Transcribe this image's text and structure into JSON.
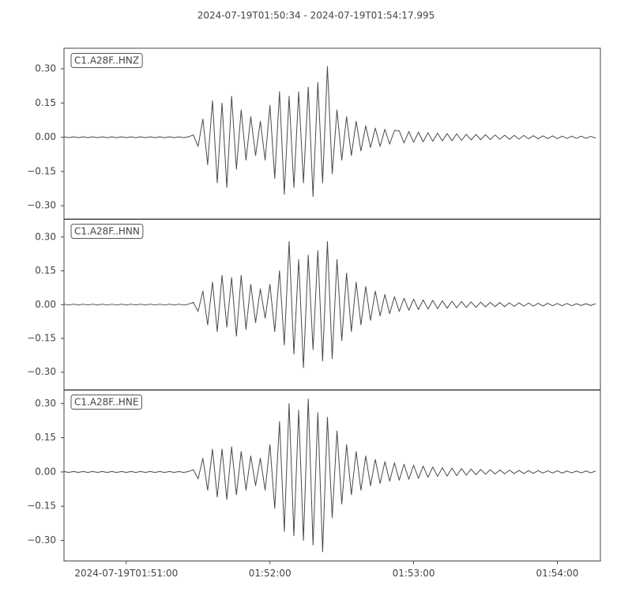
{
  "chart_data": [
    {
      "type": "line",
      "title": "2024-07-19T01:50:34  -  2024-07-19T01:54:17.995",
      "x": [
        0,
        2,
        4,
        6,
        8,
        10,
        12,
        14,
        16,
        18,
        20,
        22,
        24,
        26,
        28,
        30,
        32,
        34,
        36,
        38,
        40,
        42,
        44,
        46,
        48,
        50,
        52,
        54,
        56,
        58,
        60,
        62,
        64,
        66,
        68,
        70,
        72,
        74,
        76,
        78,
        80,
        82,
        84,
        86,
        88,
        90,
        92,
        94,
        96,
        98,
        100,
        102,
        104,
        106,
        108,
        110,
        112,
        114,
        116,
        118,
        120,
        122,
        124,
        126,
        128,
        130,
        132,
        134,
        136,
        138,
        140,
        142,
        144,
        146,
        148,
        150,
        152,
        154,
        156,
        158,
        160,
        162,
        164,
        166,
        168,
        170,
        172,
        174,
        176,
        178,
        180,
        182,
        184,
        186,
        188,
        190,
        192,
        194,
        196,
        198,
        200,
        202,
        204,
        206,
        208,
        210,
        212,
        214,
        216,
        218,
        220,
        222
      ],
      "xlim": [
        0,
        223.995
      ],
      "ylim": [
        -0.36,
        0.39
      ],
      "yticks": [
        {
          "value": 0.3,
          "label": "0.30"
        },
        {
          "value": 0.15,
          "label": "0.15"
        },
        {
          "value": 0,
          "label": "0.00"
        },
        {
          "value": -0.15,
          "label": "−0.15"
        },
        {
          "value": -0.3,
          "label": "−0.30"
        }
      ],
      "series": [
        {
          "name": "C1.A28F..HNZ",
          "color": "#4a4a4a",
          "values": [
            0.002,
            -0.002,
            0.002,
            -0.002,
            0.002,
            -0.002,
            0.002,
            -0.002,
            0.002,
            -0.002,
            0.002,
            -0.002,
            0.002,
            -0.002,
            0.002,
            -0.002,
            0.002,
            -0.002,
            0.002,
            -0.002,
            0.002,
            -0.002,
            0.002,
            -0.002,
            0.002,
            -0.002,
            0.002,
            0.01,
            -0.04,
            0.08,
            -0.12,
            0.16,
            -0.2,
            0.15,
            -0.22,
            0.18,
            -0.14,
            0.12,
            -0.1,
            0.09,
            -0.08,
            0.07,
            -0.1,
            0.14,
            -0.18,
            0.2,
            -0.25,
            0.18,
            -0.22,
            0.2,
            -0.2,
            0.22,
            -0.26,
            0.24,
            -0.2,
            0.31,
            -0.16,
            0.12,
            -0.1,
            0.09,
            -0.08,
            0.07,
            -0.06,
            0.05,
            -0.045,
            0.04,
            -0.04,
            0.035,
            -0.03,
            0.03,
            0.028,
            -0.025,
            0.025,
            -0.022,
            0.022,
            -0.02,
            0.02,
            -0.018,
            0.018,
            -0.016,
            0.016,
            -0.015,
            0.015,
            -0.014,
            0.013,
            -0.012,
            0.012,
            -0.011,
            0.011,
            -0.01,
            0.01,
            -0.009,
            0.009,
            -0.009,
            0.008,
            -0.008,
            0.008,
            -0.007,
            0.007,
            -0.007,
            0.006,
            -0.006,
            0.006,
            -0.006,
            0.005,
            -0.005,
            0.005,
            -0.005,
            0.005,
            -0.005,
            0.004,
            -0.004
          ]
        }
      ]
    },
    {
      "type": "line",
      "x": [
        0,
        2,
        4,
        6,
        8,
        10,
        12,
        14,
        16,
        18,
        20,
        22,
        24,
        26,
        28,
        30,
        32,
        34,
        36,
        38,
        40,
        42,
        44,
        46,
        48,
        50,
        52,
        54,
        56,
        58,
        60,
        62,
        64,
        66,
        68,
        70,
        72,
        74,
        76,
        78,
        80,
        82,
        84,
        86,
        88,
        90,
        92,
        94,
        96,
        98,
        100,
        102,
        104,
        106,
        108,
        110,
        112,
        114,
        116,
        118,
        120,
        122,
        124,
        126,
        128,
        130,
        132,
        134,
        136,
        138,
        140,
        142,
        144,
        146,
        148,
        150,
        152,
        154,
        156,
        158,
        160,
        162,
        164,
        166,
        168,
        170,
        172,
        174,
        176,
        178,
        180,
        182,
        184,
        186,
        188,
        190,
        192,
        194,
        196,
        198,
        200,
        202,
        204,
        206,
        208,
        210,
        212,
        214,
        216,
        218,
        220,
        222
      ],
      "xlim": [
        0,
        223.995
      ],
      "ylim": [
        -0.38,
        0.38
      ],
      "yticks": [
        {
          "value": 0.3,
          "label": "0.30"
        },
        {
          "value": 0.15,
          "label": "0.15"
        },
        {
          "value": 0,
          "label": "0.00"
        },
        {
          "value": -0.15,
          "label": "−0.15"
        },
        {
          "value": -0.3,
          "label": "−0.30"
        }
      ],
      "series": [
        {
          "name": "C1.A28F..HNN",
          "color": "#4a4a4a",
          "values": [
            0.002,
            -0.002,
            0.002,
            -0.002,
            0.002,
            -0.002,
            0.002,
            -0.002,
            0.002,
            -0.002,
            0.002,
            -0.002,
            0.002,
            -0.002,
            0.002,
            -0.002,
            0.002,
            -0.002,
            0.002,
            -0.002,
            0.002,
            -0.002,
            0.002,
            -0.002,
            0.002,
            -0.002,
            0.002,
            0.01,
            -0.03,
            0.06,
            -0.09,
            0.1,
            -0.12,
            0.13,
            -0.1,
            0.12,
            -0.14,
            0.13,
            -0.11,
            0.09,
            -0.08,
            0.07,
            -0.06,
            0.09,
            -0.12,
            0.15,
            -0.18,
            0.28,
            -0.22,
            0.2,
            -0.28,
            0.22,
            -0.2,
            0.24,
            -0.25,
            0.28,
            -0.24,
            0.2,
            -0.16,
            0.14,
            -0.12,
            0.1,
            -0.09,
            0.08,
            -0.07,
            0.06,
            -0.05,
            0.045,
            -0.04,
            0.035,
            -0.03,
            0.028,
            -0.025,
            0.024,
            -0.022,
            0.021,
            -0.02,
            0.019,
            -0.018,
            0.017,
            -0.016,
            0.015,
            -0.014,
            0.014,
            -0.013,
            0.012,
            -0.012,
            0.011,
            -0.01,
            0.01,
            -0.009,
            0.009,
            -0.009,
            0.008,
            -0.008,
            0.008,
            -0.007,
            0.007,
            -0.007,
            0.006,
            -0.006,
            0.006,
            -0.005,
            0.005,
            -0.005,
            0.005,
            -0.005,
            0.004,
            -0.004,
            0.004,
            -0.004,
            0.004
          ]
        }
      ]
    },
    {
      "type": "line",
      "x": [
        0,
        2,
        4,
        6,
        8,
        10,
        12,
        14,
        16,
        18,
        20,
        22,
        24,
        26,
        28,
        30,
        32,
        34,
        36,
        38,
        40,
        42,
        44,
        46,
        48,
        50,
        52,
        54,
        56,
        58,
        60,
        62,
        64,
        66,
        68,
        70,
        72,
        74,
        76,
        78,
        80,
        82,
        84,
        86,
        88,
        90,
        92,
        94,
        96,
        98,
        100,
        102,
        104,
        106,
        108,
        110,
        112,
        114,
        116,
        118,
        120,
        122,
        124,
        126,
        128,
        130,
        132,
        134,
        136,
        138,
        140,
        142,
        144,
        146,
        148,
        150,
        152,
        154,
        156,
        158,
        160,
        162,
        164,
        166,
        168,
        170,
        172,
        174,
        176,
        178,
        180,
        182,
        184,
        186,
        188,
        190,
        192,
        194,
        196,
        198,
        200,
        202,
        204,
        206,
        208,
        210,
        212,
        214,
        216,
        218,
        220,
        222
      ],
      "xlim": [
        0,
        223.995
      ],
      "xticks": [
        {
          "value": 26,
          "label": "2024-07-19T01:51:00"
        },
        {
          "value": 86,
          "label": "01:52:00"
        },
        {
          "value": 146,
          "label": "01:53:00"
        },
        {
          "value": 206,
          "label": "01:54:00"
        }
      ],
      "ylim": [
        -0.39,
        0.36
      ],
      "yticks": [
        {
          "value": 0.3,
          "label": "0.30"
        },
        {
          "value": 0.15,
          "label": "0.15"
        },
        {
          "value": 0,
          "label": "0.00"
        },
        {
          "value": -0.15,
          "label": "−0.15"
        },
        {
          "value": -0.3,
          "label": "−0.30"
        }
      ],
      "series": [
        {
          "name": "C1.A28F..HNE",
          "color": "#4a4a4a",
          "values": [
            0.002,
            -0.002,
            0.002,
            -0.002,
            0.002,
            -0.002,
            0.002,
            -0.002,
            0.002,
            -0.002,
            0.002,
            -0.002,
            0.002,
            -0.002,
            0.002,
            -0.002,
            0.002,
            -0.002,
            0.002,
            -0.002,
            0.002,
            -0.002,
            0.002,
            -0.002,
            0.002,
            -0.002,
            0.002,
            0.01,
            -0.03,
            0.06,
            -0.08,
            0.1,
            -0.11,
            0.1,
            -0.12,
            0.11,
            -0.1,
            0.09,
            -0.08,
            0.07,
            -0.06,
            0.06,
            -0.08,
            0.12,
            -0.16,
            0.22,
            -0.26,
            0.3,
            -0.28,
            0.27,
            -0.3,
            0.32,
            -0.32,
            0.26,
            -0.35,
            0.24,
            -0.2,
            0.18,
            -0.14,
            0.12,
            -0.1,
            0.09,
            -0.08,
            0.07,
            -0.06,
            0.055,
            -0.05,
            0.045,
            -0.04,
            0.04,
            -0.036,
            0.034,
            -0.032,
            0.03,
            -0.028,
            0.026,
            -0.024,
            0.022,
            -0.02,
            0.019,
            -0.018,
            0.017,
            -0.016,
            0.015,
            -0.014,
            0.013,
            -0.012,
            0.011,
            -0.01,
            0.01,
            -0.009,
            0.009,
            -0.008,
            0.008,
            -0.007,
            0.007,
            -0.007,
            0.006,
            -0.006,
            0.006,
            -0.005,
            0.005,
            -0.005,
            0.005,
            -0.005,
            0.004,
            -0.004,
            0.004,
            -0.004,
            0.004,
            -0.004,
            0.004
          ]
        }
      ]
    }
  ]
}
